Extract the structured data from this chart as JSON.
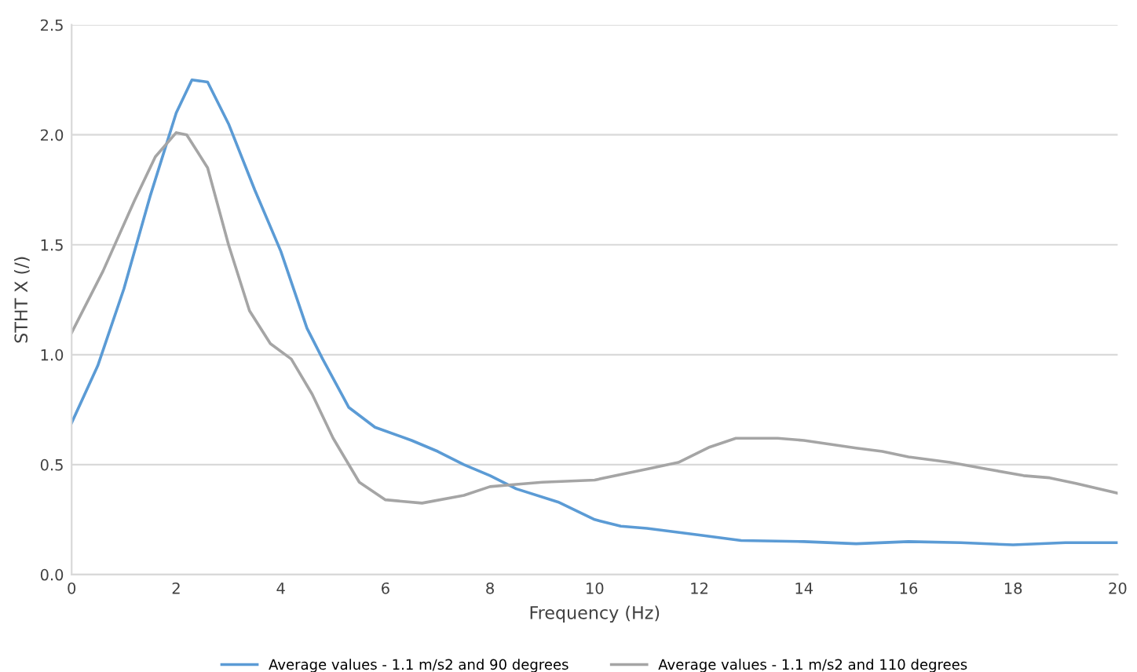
{
  "chart_data": {
    "type": "line",
    "xlabel": "Frequency (Hz)",
    "ylabel": "STHT X (/)",
    "xlim": [
      0,
      20
    ],
    "xticks": [
      0,
      2,
      4,
      6,
      8,
      10,
      12,
      14,
      16,
      18,
      20
    ],
    "ylim": [
      0,
      2.5
    ],
    "yticks": [
      {
        "value": 0,
        "label": "0.0"
      },
      {
        "value": 0.5,
        "label": "0.5"
      },
      {
        "value": 1,
        "label": "1.0"
      },
      {
        "value": 1.5,
        "label": "1.5"
      },
      {
        "value": 2,
        "label": "2.0"
      },
      {
        "value": 2.5,
        "label": "2.5"
      }
    ],
    "grid": "y",
    "legend": "bottom",
    "marker": "none",
    "line_style": "solid",
    "series": [
      {
        "name": "Average values - 1.1 m/s2 and 90 degrees",
        "color": "#5b9bd5",
        "x": [
          0,
          0.5,
          1,
          1.5,
          2,
          2.3,
          2.6,
          3,
          3.5,
          4,
          4.5,
          4.8,
          5.3,
          5.8,
          6.5,
          7,
          7.5,
          8,
          8.5,
          9.3,
          10,
          10.5,
          11,
          12,
          12.8,
          14,
          15,
          16,
          17,
          18,
          19,
          20
        ],
        "values": [
          0.69,
          0.95,
          1.3,
          1.72,
          2.1,
          2.25,
          2.24,
          2.05,
          1.75,
          1.47,
          1.12,
          0.98,
          0.76,
          0.67,
          0.61,
          0.56,
          0.5,
          0.45,
          0.39,
          0.33,
          0.25,
          0.22,
          0.21,
          0.18,
          0.155,
          0.15,
          0.14,
          0.15,
          0.145,
          0.135,
          0.145,
          0.145
        ]
      },
      {
        "name": "Average values - 1.1 m/s2 and 110 degrees",
        "color": "#a5a5a5",
        "x": [
          0,
          0.6,
          1.2,
          1.6,
          2,
          2.2,
          2.6,
          3,
          3.4,
          3.8,
          4.2,
          4.6,
          5,
          5.5,
          6,
          6.7,
          7.5,
          8,
          8.5,
          9,
          10,
          11,
          11.6,
          12.2,
          12.7,
          13.5,
          14,
          15,
          15.5,
          16,
          16.8,
          17.5,
          18.2,
          18.7,
          19.2,
          20
        ],
        "values": [
          1.1,
          1.38,
          1.7,
          1.9,
          2.01,
          2.0,
          1.85,
          1.5,
          1.2,
          1.05,
          0.98,
          0.82,
          0.62,
          0.42,
          0.34,
          0.325,
          0.36,
          0.4,
          0.41,
          0.42,
          0.43,
          0.48,
          0.51,
          0.58,
          0.62,
          0.62,
          0.61,
          0.575,
          0.56,
          0.535,
          0.51,
          0.48,
          0.45,
          0.44,
          0.415,
          0.37
        ]
      }
    ]
  }
}
